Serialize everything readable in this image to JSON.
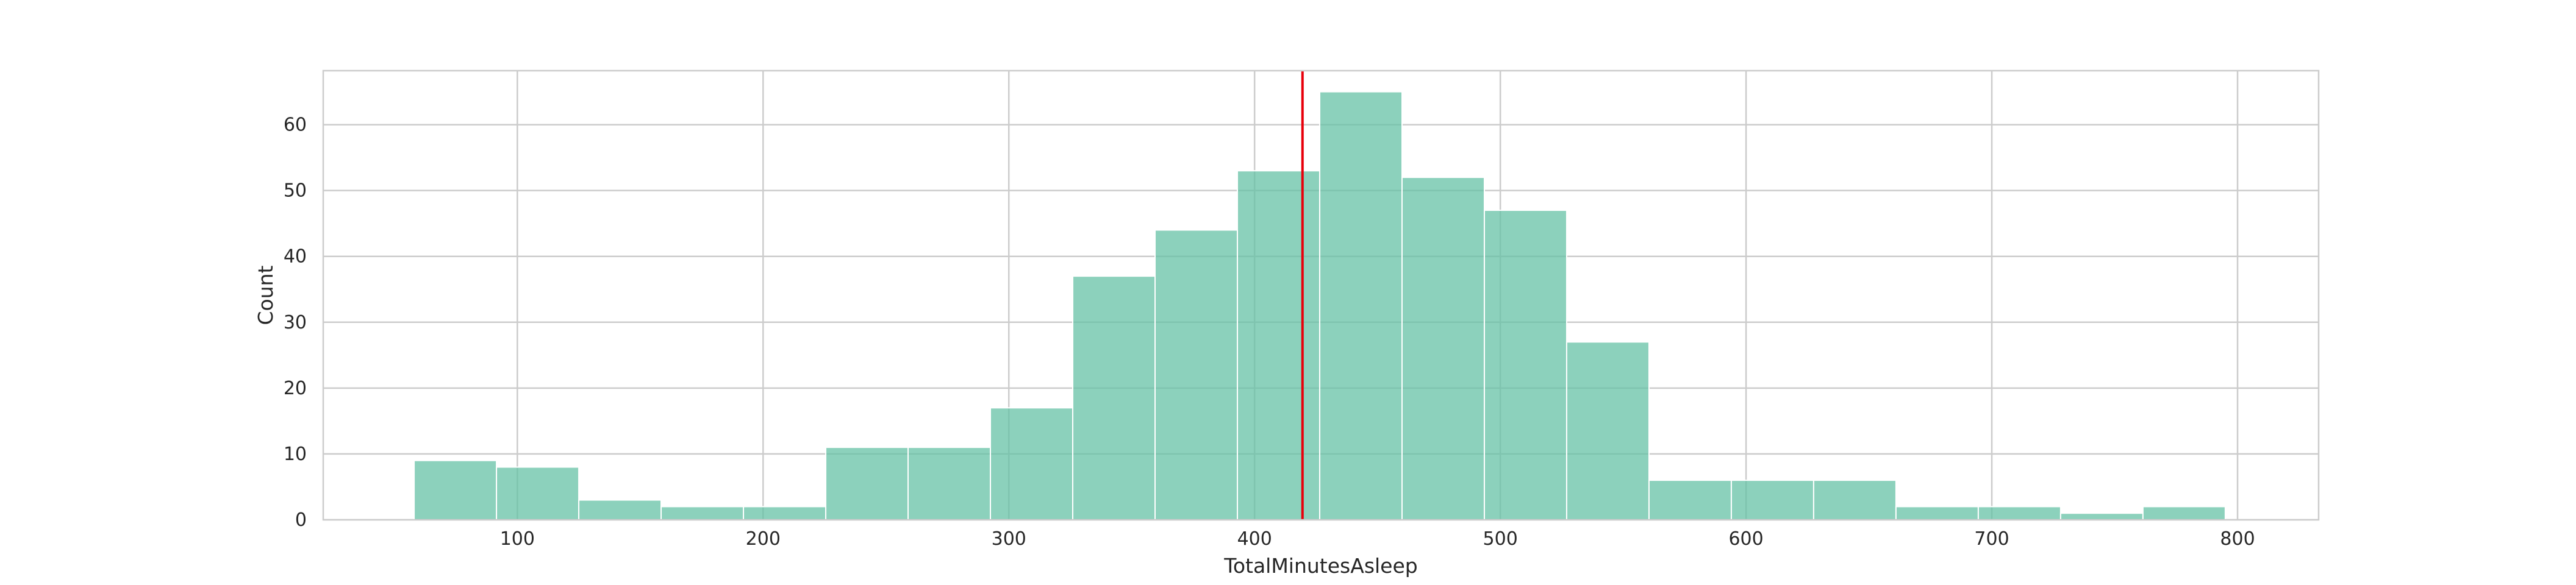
{
  "chart_data": {
    "type": "bar",
    "title": "",
    "xlabel": "TotalMinutesAsleep",
    "ylabel": "Count",
    "xlim": [
      21,
      833
    ],
    "ylim": [
      0,
      68.2
    ],
    "bin_width": 33.5,
    "bins": [
      {
        "start": 58,
        "count": 9
      },
      {
        "start": 91.5,
        "count": 8
      },
      {
        "start": 125,
        "count": 3
      },
      {
        "start": 158.5,
        "count": 2
      },
      {
        "start": 192,
        "count": 2
      },
      {
        "start": 225.5,
        "count": 11
      },
      {
        "start": 259,
        "count": 11
      },
      {
        "start": 292.5,
        "count": 17
      },
      {
        "start": 326,
        "count": 37
      },
      {
        "start": 359.5,
        "count": 44
      },
      {
        "start": 393,
        "count": 53
      },
      {
        "start": 426.5,
        "count": 65
      },
      {
        "start": 460,
        "count": 52
      },
      {
        "start": 493.5,
        "count": 47
      },
      {
        "start": 527,
        "count": 27
      },
      {
        "start": 560.5,
        "count": 6
      },
      {
        "start": 594,
        "count": 6
      },
      {
        "start": 627.5,
        "count": 6
      },
      {
        "start": 661,
        "count": 2
      },
      {
        "start": 694.5,
        "count": 2
      },
      {
        "start": 728,
        "count": 1
      },
      {
        "start": 761.5,
        "count": 2
      }
    ],
    "x_ticks": [
      100,
      200,
      300,
      400,
      500,
      600,
      700,
      800
    ],
    "y_ticks": [
      0,
      10,
      20,
      30,
      40,
      50,
      60
    ],
    "reference_line": {
      "x": 419.5,
      "color": "#e8000b"
    },
    "bar_color": "#66c2a5",
    "bar_opacity": 0.75,
    "grid": true,
    "legend": "none"
  }
}
